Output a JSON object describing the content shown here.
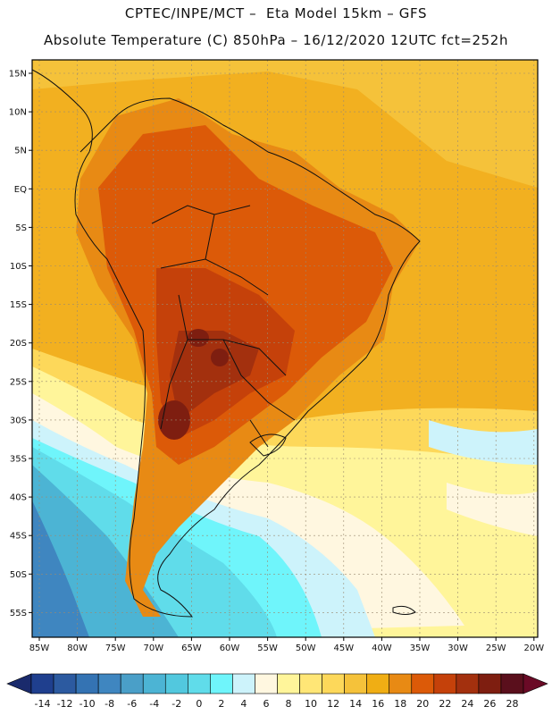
{
  "header": {
    "line1": "CPTEC/INPE/MCT –  Eta Model 15km – GFS",
    "line2": "Absolute Temperature (C) 850hPa – 16/12/2020 12UTC fct=252h"
  },
  "axes": {
    "lat_labels": [
      "15N",
      "10N",
      "5N",
      "EQ",
      "5S",
      "10S",
      "15S",
      "20S",
      "25S",
      "30S",
      "35S",
      "40S",
      "45S",
      "50S",
      "55S"
    ],
    "lon_labels": [
      "85W",
      "80W",
      "75W",
      "70W",
      "65W",
      "60W",
      "55W",
      "50W",
      "45W",
      "40W",
      "35W",
      "30W",
      "25W",
      "20W"
    ]
  },
  "colorbar": {
    "labels": [
      "-14",
      "-12",
      "-10",
      "-8",
      "-6",
      "-4",
      "-2",
      "0",
      "2",
      "4",
      "6",
      "8",
      "10",
      "12",
      "14",
      "16",
      "18",
      "20",
      "22",
      "24",
      "26",
      "28"
    ],
    "colors": [
      "#1f3f8e",
      "#2c5aa0",
      "#3473b3",
      "#3f86c0",
      "#4a9fc8",
      "#4cb4d4",
      "#52c8de",
      "#60dcea",
      "#6ff5fb",
      "#cdf3fb",
      "#fff7e0",
      "#fff59a",
      "#ffe676",
      "#fdd85a",
      "#f5c23a",
      "#f0ae14",
      "#e88a14",
      "#dc5a08",
      "#c5410a",
      "#a3300e",
      "#7e1e10",
      "#5a0f1c"
    ],
    "end_left": "#1a2a6c",
    "end_right": "#6a0a26"
  }
}
